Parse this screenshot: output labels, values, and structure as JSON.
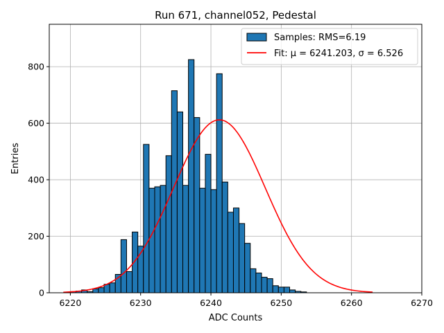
{
  "chart_data": {
    "type": "bar",
    "title": "Run 671, channel052, Pedestal",
    "xlabel": "ADC Counts",
    "ylabel": "Entries",
    "xlim": [
      6217,
      6270
    ],
    "ylim": [
      0,
      950
    ],
    "xticks": [
      6220,
      6230,
      6240,
      6250,
      6260,
      6270
    ],
    "yticks": [
      0,
      200,
      400,
      600,
      800
    ],
    "grid": true,
    "legend_position": "top-right",
    "bar_color": "#1f77b4",
    "fit_color": "#ff0000",
    "histogram": {
      "name": "Samples: RMS=6.19",
      "bin_width": 0.8,
      "start": 6220.0,
      "counts": [
        4,
        6,
        10,
        4,
        14,
        18,
        30,
        35,
        65,
        188,
        75,
        215,
        165,
        525,
        370,
        375,
        380,
        485,
        715,
        640,
        380,
        825,
        620,
        370,
        490,
        365,
        775,
        392,
        285,
        300,
        245,
        175,
        85,
        70,
        55,
        50,
        25,
        20,
        20,
        10,
        5,
        3
      ]
    },
    "fit": {
      "name": "Fit: μ = 6241.203, σ = 6.526",
      "mu": 6241.203,
      "sigma": 6.526,
      "amplitude": 612,
      "x_range": [
        6219,
        6263
      ]
    }
  }
}
